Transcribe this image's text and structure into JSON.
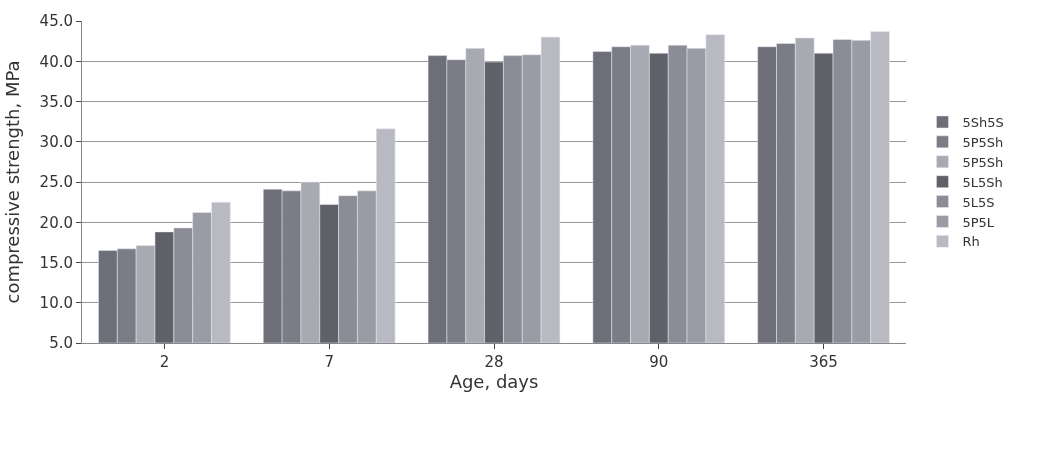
{
  "chart_data": {
    "type": "bar",
    "xlabel": "Age, days",
    "ylabel": "compressive strength, MPa",
    "categories": [
      "2",
      "7",
      "28",
      "90",
      "365"
    ],
    "series": [
      {
        "name": "5Sh5S",
        "color": "#6e6e78",
        "values": [
          16.5,
          24.1,
          40.7,
          41.2,
          41.8
        ]
      },
      {
        "name": "5P5Sh",
        "color": "#7c7c86",
        "values": [
          16.7,
          23.9,
          40.2,
          41.8,
          42.2
        ]
      },
      {
        "name": "5P5Sh",
        "color": "#a9a9b2",
        "values": [
          17.1,
          25.0,
          41.6,
          42.0,
          42.9
        ]
      },
      {
        "name": "5L5Sh",
        "color": "#606069",
        "values": [
          18.8,
          22.2,
          39.9,
          41.0,
          41.0
        ]
      },
      {
        "name": "5L5S",
        "color": "#8c8c96",
        "values": [
          19.3,
          23.3,
          40.7,
          42.0,
          42.7
        ]
      },
      {
        "name": "5P5L",
        "color": "#9b9ba5",
        "values": [
          21.2,
          23.9,
          40.8,
          41.6,
          42.6
        ]
      },
      {
        "name": "Rh",
        "color": "#b9b9c2",
        "values": [
          22.5,
          31.6,
          43.0,
          43.3,
          43.7
        ]
      }
    ],
    "ylim": [
      5,
      45
    ],
    "yticks": [
      {
        "value": 5,
        "label": "5.0"
      },
      {
        "value": 10,
        "label": "10.0"
      },
      {
        "value": 15,
        "label": "15.0"
      },
      {
        "value": 20,
        "label": "20.0"
      },
      {
        "value": 25,
        "label": "25.0"
      },
      {
        "value": 30,
        "label": "30.0"
      },
      {
        "value": 35,
        "label": "35.0"
      },
      {
        "value": 40,
        "label": "40.0"
      },
      {
        "value": 45,
        "label": "45.0"
      }
    ],
    "grid": "y",
    "legend": "right"
  }
}
